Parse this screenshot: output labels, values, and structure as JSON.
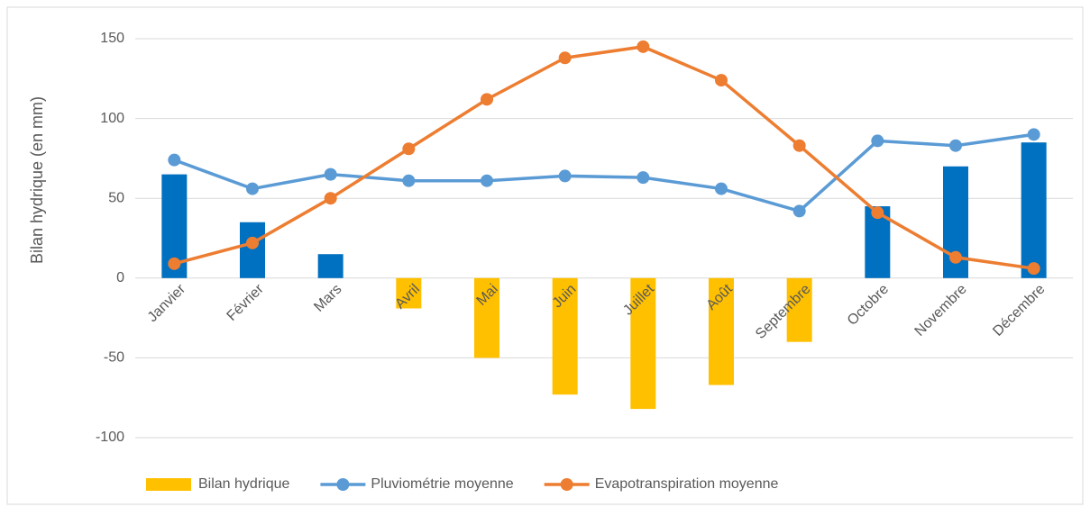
{
  "chart_data": {
    "type": "bar-line",
    "y_label": "Bilan hydrique (en mm)",
    "categories": [
      "Janvier",
      "Février",
      "Mars",
      "Avril",
      "Mai",
      "Juin",
      "Juillet",
      "Août",
      "Septembre",
      "Octobre",
      "Novembre",
      "Décembre"
    ],
    "series": [
      {
        "name": "Bilan hydrique",
        "type": "bar",
        "color": "#ffc000",
        "colors": [
          "#0070c0",
          "#0070c0",
          "#0070c0",
          "#ffc000",
          "#ffc000",
          "#ffc000",
          "#ffc000",
          "#ffc000",
          "#ffc000",
          "#0070c0",
          "#0070c0",
          "#0070c0"
        ],
        "values": [
          65,
          35,
          15,
          -19,
          -50,
          -73,
          -82,
          -67,
          -40,
          45,
          70,
          85
        ]
      },
      {
        "name": "Pluviométrie moyenne",
        "type": "line",
        "color": "#5b9bd5",
        "values": [
          74,
          56,
          65,
          61,
          61,
          64,
          63,
          56,
          42,
          86,
          83,
          90
        ]
      },
      {
        "name": "Evapotranspiration moyenne",
        "type": "line",
        "color": "#ed7d31",
        "values": [
          9,
          22,
          50,
          81,
          112,
          138,
          145,
          124,
          83,
          41,
          13,
          6
        ]
      }
    ],
    "ylim": [
      -100,
      150
    ],
    "yticks": [
      -100,
      -50,
      0,
      50,
      100,
      150
    ],
    "grid": true,
    "legend": "bottom"
  }
}
